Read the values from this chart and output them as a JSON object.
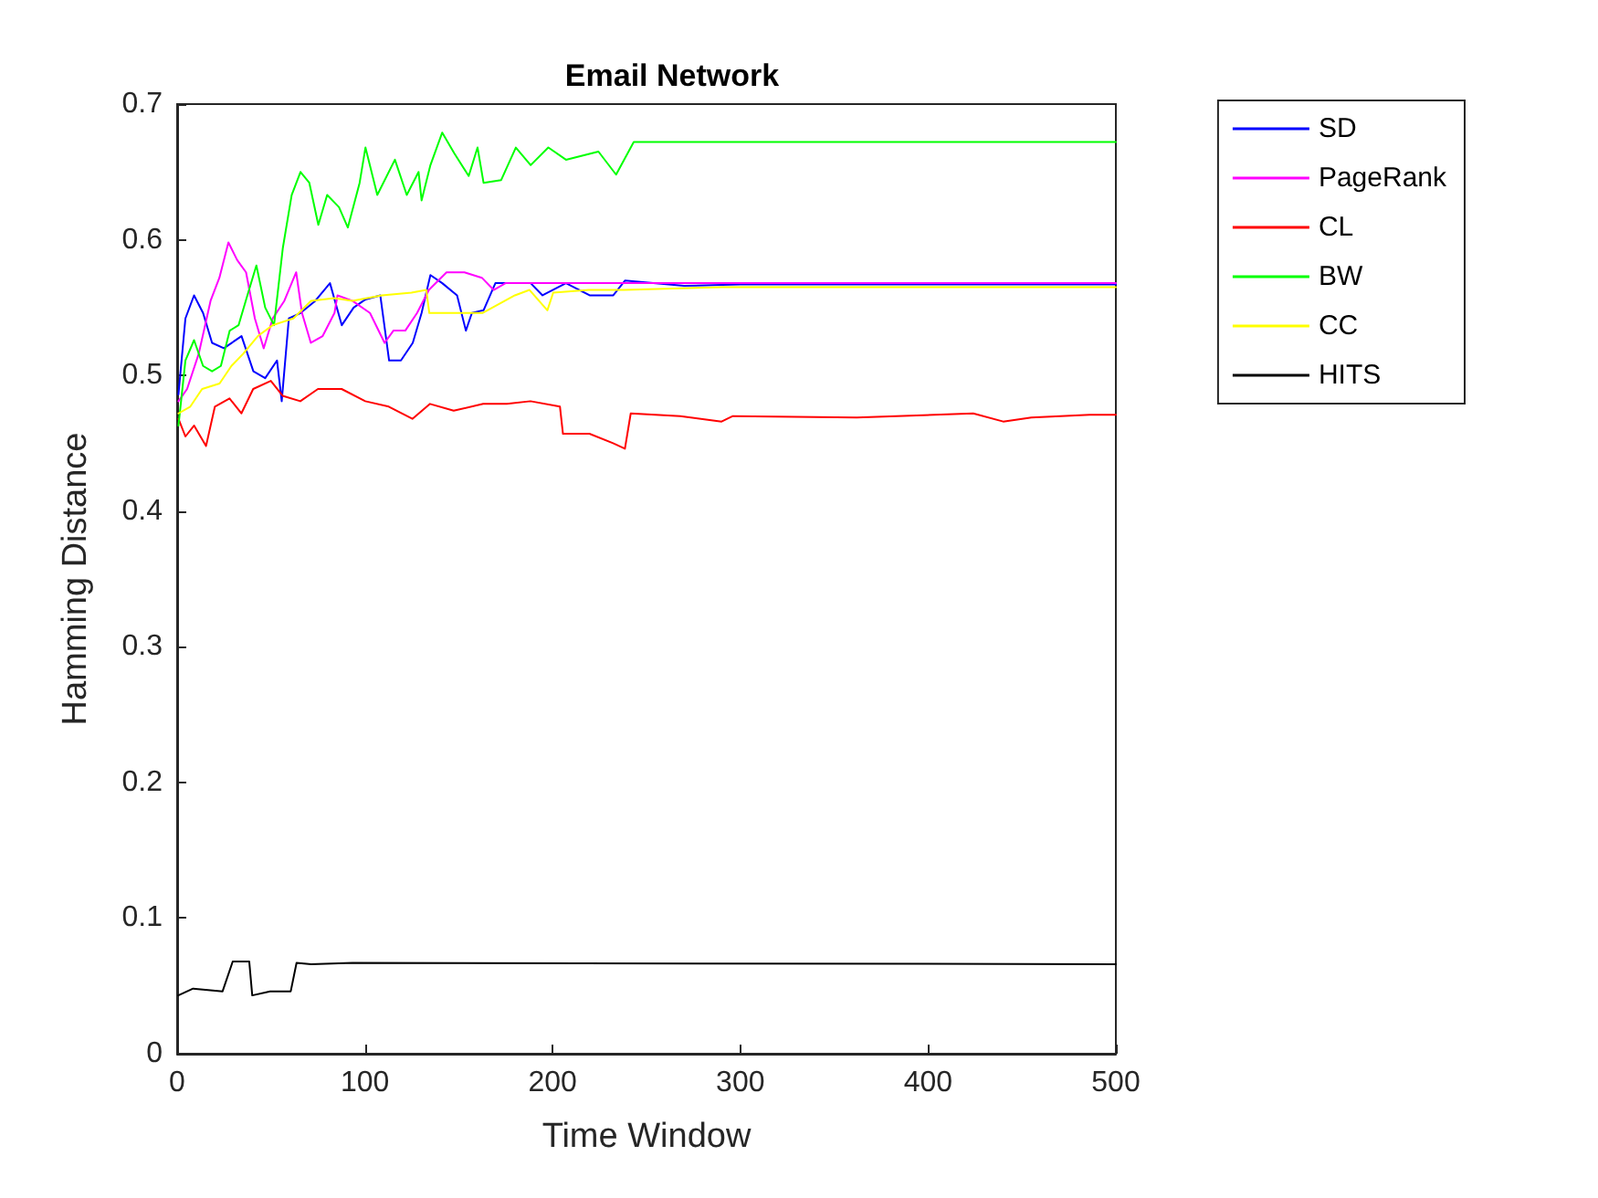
{
  "chart_data": {
    "type": "line",
    "title": "Email Network",
    "xlabel": "Time Window",
    "ylabel": "Hamming Distance",
    "xlim": [
      0,
      500
    ],
    "xticks": [
      0,
      100,
      200,
      300,
      400,
      500
    ],
    "ylim": [
      0,
      0.7
    ],
    "yticks": [
      0,
      0.1,
      0.2,
      0.3,
      0.4,
      0.5,
      0.6,
      0.7
    ],
    "legend": "right",
    "grid": false,
    "series": [
      {
        "name": "SD",
        "color": "#0000ff",
        "x": [
          0.7,
          4.4,
          9,
          13.8,
          18.6,
          24.9,
          34.3,
          40.6,
          46.9,
          53.2,
          55.7,
          59.5,
          65.7,
          73.6,
          81.4,
          87.7,
          94,
          100.3,
          108.2,
          112.9,
          119.2,
          125.5,
          130.2,
          134.9,
          141.2,
          149.1,
          153.8,
          157,
          163.2,
          169.5,
          179,
          188.3,
          194.6,
          207.1,
          219.7,
          232.3,
          238.6,
          270,
          300,
          500
        ],
        "values": [
          0.486,
          0.542,
          0.559,
          0.546,
          0.524,
          0.52,
          0.529,
          0.503,
          0.498,
          0.511,
          0.481,
          0.542,
          0.546,
          0.555,
          0.568,
          0.537,
          0.55,
          0.556,
          0.559,
          0.511,
          0.511,
          0.524,
          0.546,
          0.574,
          0.568,
          0.559,
          0.533,
          0.546,
          0.548,
          0.568,
          0.568,
          0.568,
          0.559,
          0.568,
          0.559,
          0.559,
          0.57,
          0.566,
          0.567,
          0.567
        ]
      },
      {
        "name": "PageRank",
        "color": "#ff00ff",
        "x": [
          0.7,
          5.3,
          11.5,
          17.8,
          22.5,
          27.3,
          32,
          36.7,
          41.4,
          46.1,
          50.9,
          57.1,
          63.4,
          66.5,
          71.2,
          77.5,
          83.8,
          85.4,
          93.3,
          102.7,
          110.5,
          115.2,
          121.5,
          127.8,
          134.1,
          143.5,
          153,
          162.3,
          168.6,
          174.9,
          187.5,
          500
        ],
        "values": [
          0.481,
          0.49,
          0.516,
          0.555,
          0.572,
          0.598,
          0.585,
          0.576,
          0.542,
          0.52,
          0.542,
          0.555,
          0.576,
          0.546,
          0.524,
          0.529,
          0.546,
          0.559,
          0.555,
          0.546,
          0.524,
          0.533,
          0.533,
          0.546,
          0.563,
          0.576,
          0.576,
          0.572,
          0.563,
          0.568,
          0.568,
          0.568
        ]
      },
      {
        "name": "CL",
        "color": "#ff0000",
        "x": [
          0.7,
          4.4,
          9,
          15.4,
          20.1,
          27.9,
          34.2,
          40.5,
          49.9,
          56.2,
          65.6,
          75,
          87.6,
          100.2,
          112.7,
          125.3,
          134.7,
          147.3,
          163,
          175.6,
          188.2,
          203.9,
          205.5,
          219.6,
          232.2,
          238.5,
          241.6,
          268,
          290,
          296,
          362,
          424,
          440,
          455,
          486,
          500
        ],
        "values": [
          0.468,
          0.455,
          0.463,
          0.448,
          0.477,
          0.483,
          0.472,
          0.49,
          0.496,
          0.485,
          0.481,
          0.49,
          0.49,
          0.481,
          0.477,
          0.468,
          0.479,
          0.474,
          0.479,
          0.479,
          0.481,
          0.477,
          0.457,
          0.457,
          0.45,
          0.446,
          0.472,
          0.47,
          0.466,
          0.47,
          0.469,
          0.472,
          0.466,
          0.469,
          0.471,
          0.471
        ]
      },
      {
        "name": "BW",
        "color": "#00ff00",
        "x": [
          0.7,
          4.4,
          9,
          13.8,
          18.6,
          23.3,
          28,
          32.7,
          37.4,
          42.2,
          46.9,
          51.6,
          56.3,
          61,
          65.7,
          70.4,
          75.2,
          79.9,
          86.2,
          90.9,
          97.2,
          100.3,
          106.6,
          116,
          122.3,
          128.6,
          130.2,
          134.9,
          141.2,
          147.5,
          155.3,
          160,
          163.2,
          172.6,
          180.4,
          188.3,
          197.7,
          207.1,
          224.4,
          233.8,
          243.2,
          500
        ],
        "values": [
          0.463,
          0.511,
          0.526,
          0.507,
          0.503,
          0.507,
          0.533,
          0.537,
          0.559,
          0.581,
          0.55,
          0.537,
          0.594,
          0.633,
          0.65,
          0.642,
          0.611,
          0.633,
          0.624,
          0.609,
          0.642,
          0.668,
          0.633,
          0.659,
          0.633,
          0.65,
          0.629,
          0.655,
          0.679,
          0.664,
          0.647,
          0.668,
          0.642,
          0.644,
          0.668,
          0.655,
          0.668,
          0.659,
          0.665,
          0.648,
          0.672,
          0.672
        ]
      },
      {
        "name": "CC",
        "color": "#ffff00",
        "x": [
          0.7,
          7,
          13.3,
          22.6,
          28.9,
          35.2,
          43,
          50.9,
          61.9,
          71.3,
          83.8,
          93.3,
          109,
          124.8,
          132.7,
          134.3,
          150,
          162.6,
          179.9,
          187.7,
          197.2,
          200.3,
          219.2,
          238,
          290,
          500
        ],
        "values": [
          0.472,
          0.477,
          0.49,
          0.494,
          0.507,
          0.516,
          0.529,
          0.537,
          0.542,
          0.555,
          0.557,
          0.555,
          0.559,
          0.561,
          0.563,
          0.546,
          0.546,
          0.546,
          0.559,
          0.563,
          0.548,
          0.561,
          0.563,
          0.563,
          0.565,
          0.565
        ]
      },
      {
        "name": "HITS",
        "color": "#000000",
        "x": [
          0.6,
          8.5,
          24.2,
          29.6,
          38.4,
          40,
          49.5,
          60.5,
          63.6,
          71.4,
          93.4,
          500
        ],
        "values": [
          0.043,
          0.048,
          0.046,
          0.068,
          0.068,
          0.043,
          0.046,
          0.046,
          0.067,
          0.066,
          0.067,
          0.066
        ]
      }
    ]
  }
}
